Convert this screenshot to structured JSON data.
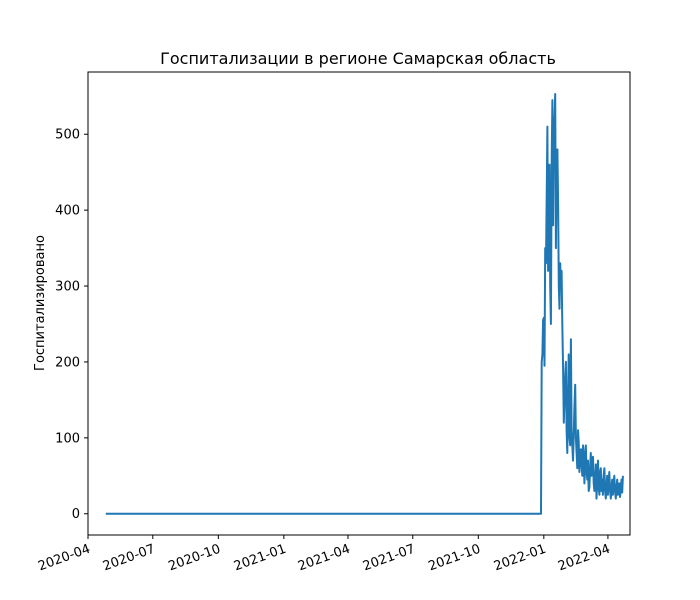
{
  "chart_data": {
    "type": "line",
    "title": "Госпитализации в регионе Самарская область",
    "xlabel": "",
    "ylabel": "Госпитализировано",
    "xlim": [
      "2020-04-01",
      "2022-05-02"
    ],
    "ylim": [
      -28,
      582
    ],
    "x_tick_labels": [
      "2020-04",
      "2020-07",
      "2020-10",
      "2021-01",
      "2021-04",
      "2021-07",
      "2021-10",
      "2022-01",
      "2022-04"
    ],
    "y_tick_labels": [
      "0",
      "100",
      "200",
      "300",
      "400",
      "500"
    ],
    "grid": false,
    "legend": "none",
    "series": [
      {
        "color": "#1f77b4",
        "x": [
          "2020-04-26",
          "2021-12-28",
          "2021-12-29",
          "2021-12-30",
          "2021-12-31",
          "2022-01-01",
          "2022-01-02",
          "2022-01-03",
          "2022-01-04",
          "2022-01-05",
          "2022-01-06",
          "2022-01-07",
          "2022-01-08",
          "2022-01-09",
          "2022-01-10",
          "2022-01-11",
          "2022-01-12",
          "2022-01-13",
          "2022-01-14",
          "2022-01-15",
          "2022-01-16",
          "2022-01-17",
          "2022-01-18",
          "2022-01-19",
          "2022-01-20",
          "2022-01-21",
          "2022-01-22",
          "2022-01-23",
          "2022-01-24",
          "2022-01-25",
          "2022-01-26",
          "2022-01-27",
          "2022-01-28",
          "2022-01-29",
          "2022-01-30",
          "2022-01-31",
          "2022-02-01",
          "2022-02-02",
          "2022-02-03",
          "2022-02-04",
          "2022-02-05",
          "2022-02-06",
          "2022-02-07",
          "2022-02-08",
          "2022-02-09",
          "2022-02-10",
          "2022-02-11",
          "2022-02-12",
          "2022-02-13",
          "2022-02-14",
          "2022-02-15",
          "2022-02-16",
          "2022-02-17",
          "2022-02-18",
          "2022-02-19",
          "2022-02-20",
          "2022-02-21",
          "2022-02-22",
          "2022-02-23",
          "2022-02-24",
          "2022-02-25",
          "2022-02-26",
          "2022-02-27",
          "2022-02-28",
          "2022-03-01",
          "2022-03-02",
          "2022-03-03",
          "2022-03-04",
          "2022-03-05",
          "2022-03-06",
          "2022-03-07",
          "2022-03-08",
          "2022-03-09",
          "2022-03-10",
          "2022-03-11",
          "2022-03-12",
          "2022-03-13",
          "2022-03-14",
          "2022-03-15",
          "2022-03-16",
          "2022-03-17",
          "2022-03-18",
          "2022-03-19",
          "2022-03-20",
          "2022-03-21",
          "2022-03-22",
          "2022-03-23",
          "2022-03-24",
          "2022-03-25",
          "2022-03-26",
          "2022-03-27",
          "2022-03-28",
          "2022-03-29",
          "2022-03-30",
          "2022-03-31",
          "2022-04-01",
          "2022-04-02",
          "2022-04-03",
          "2022-04-04",
          "2022-04-05",
          "2022-04-06",
          "2022-04-07",
          "2022-04-08",
          "2022-04-09",
          "2022-04-10",
          "2022-04-11",
          "2022-04-12",
          "2022-04-13",
          "2022-04-14",
          "2022-04-15",
          "2022-04-16",
          "2022-04-17",
          "2022-04-18",
          "2022-04-19",
          "2022-04-20",
          "2022-04-21",
          "2022-04-22"
        ],
        "y": [
          0,
          0,
          200,
          210,
          255,
          258,
          195,
          350,
          330,
          420,
          510,
          320,
          400,
          460,
          300,
          250,
          470,
          545,
          380,
          500,
          520,
          553,
          350,
          460,
          480,
          410,
          300,
          270,
          330,
          300,
          320,
          250,
          190,
          120,
          150,
          180,
          200,
          110,
          80,
          150,
          210,
          100,
          90,
          230,
          110,
          90,
          70,
          100,
          140,
          170,
          100,
          80,
          60,
          110,
          95,
          55,
          70,
          85,
          65,
          50,
          90,
          80,
          40,
          60,
          90,
          55,
          45,
          70,
          30,
          35,
          60,
          80,
          50,
          55,
          75,
          40,
          30,
          45,
          65,
          20,
          40,
          70,
          35,
          25,
          55,
          60,
          30,
          45,
          25,
          50,
          60,
          30,
          20,
          35,
          50,
          25,
          40,
          55,
          30,
          20,
          35,
          45,
          25,
          40,
          50,
          30,
          20,
          35,
          45,
          25,
          35,
          40,
          22,
          30,
          45,
          28,
          50
        ]
      }
    ]
  }
}
